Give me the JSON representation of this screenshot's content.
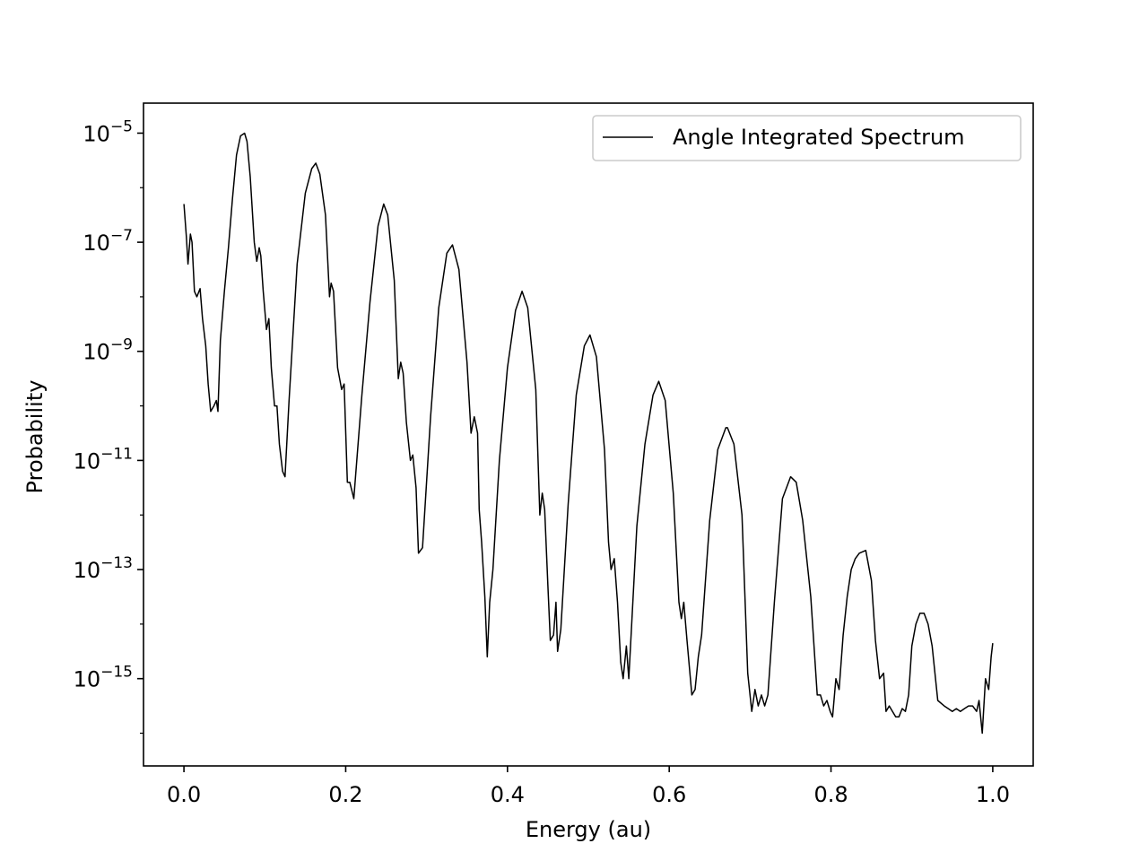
{
  "chart_data": {
    "type": "line",
    "title": "",
    "xlabel": "Energy (au)",
    "ylabel": "Probability",
    "xlim": [
      -0.05,
      1.05
    ],
    "ylim_log10": [
      -16.6,
      -4.45
    ],
    "yscale": "log",
    "grid": false,
    "legend": {
      "placement": "top-right",
      "entries": [
        "Angle Integrated Spectrum"
      ]
    },
    "x_ticks": [
      "0.0",
      "0.2",
      "0.4",
      "0.6",
      "0.8",
      "1.0"
    ],
    "x_tick_values": [
      0.0,
      0.2,
      0.4,
      0.6,
      0.8,
      1.0
    ],
    "y_ticks": [
      {
        "base": "10",
        "exp": "−5",
        "log10": -5
      },
      {
        "base": "10",
        "exp": "−7",
        "log10": -7
      },
      {
        "base": "10",
        "exp": "−9",
        "log10": -9
      },
      {
        "base": "10",
        "exp": "−11",
        "log10": -11
      },
      {
        "base": "10",
        "exp": "−13",
        "log10": -13
      },
      {
        "base": "10",
        "exp": "−15",
        "log10": -15
      }
    ],
    "series": [
      {
        "name": "Angle Integrated Spectrum",
        "color": "#000000",
        "x": [
          0.0,
          0.003,
          0.005,
          0.008,
          0.01,
          0.013,
          0.016,
          0.02,
          0.023,
          0.027,
          0.03,
          0.033,
          0.037,
          0.04,
          0.042,
          0.045,
          0.05,
          0.055,
          0.06,
          0.065,
          0.07,
          0.075,
          0.078,
          0.082,
          0.087,
          0.09,
          0.093,
          0.095,
          0.098,
          0.102,
          0.105,
          0.108,
          0.112,
          0.115,
          0.118,
          0.122,
          0.125,
          0.13,
          0.14,
          0.15,
          0.158,
          0.163,
          0.168,
          0.175,
          0.18,
          0.182,
          0.185,
          0.19,
          0.195,
          0.198,
          0.202,
          0.205,
          0.21,
          0.22,
          0.23,
          0.24,
          0.247,
          0.252,
          0.26,
          0.265,
          0.268,
          0.271,
          0.275,
          0.28,
          0.283,
          0.287,
          0.29,
          0.295,
          0.305,
          0.315,
          0.325,
          0.332,
          0.34,
          0.35,
          0.355,
          0.359,
          0.363,
          0.365,
          0.368,
          0.372,
          0.375,
          0.378,
          0.382,
          0.39,
          0.4,
          0.41,
          0.418,
          0.425,
          0.435,
          0.44,
          0.443,
          0.446,
          0.45,
          0.453,
          0.457,
          0.46,
          0.462,
          0.466,
          0.475,
          0.485,
          0.495,
          0.502,
          0.51,
          0.52,
          0.525,
          0.528,
          0.532,
          0.536,
          0.54,
          0.543,
          0.547,
          0.55,
          0.56,
          0.57,
          0.58,
          0.587,
          0.595,
          0.605,
          0.612,
          0.615,
          0.618,
          0.622,
          0.628,
          0.632,
          0.636,
          0.64,
          0.65,
          0.66,
          0.67,
          0.672,
          0.68,
          0.69,
          0.697,
          0.702,
          0.706,
          0.71,
          0.714,
          0.718,
          0.722,
          0.73,
          0.74,
          0.75,
          0.757,
          0.765,
          0.775,
          0.783,
          0.787,
          0.791,
          0.795,
          0.799,
          0.802,
          0.806,
          0.81,
          0.815,
          0.82,
          0.825,
          0.83,
          0.835,
          0.843,
          0.85,
          0.855,
          0.86,
          0.865,
          0.868,
          0.872,
          0.876,
          0.88,
          0.884,
          0.888,
          0.892,
          0.896,
          0.9,
          0.905,
          0.91,
          0.915,
          0.92,
          0.925,
          0.932,
          0.94,
          0.945,
          0.95,
          0.955,
          0.96,
          0.965,
          0.97,
          0.975,
          0.98,
          0.983,
          0.987,
          0.991,
          0.995,
          0.998,
          1.0
        ],
        "y_log10": [
          -6.3,
          -6.9,
          -7.4,
          -6.85,
          -7.0,
          -7.9,
          -8.0,
          -7.85,
          -8.4,
          -8.9,
          -9.6,
          -10.1,
          -10.0,
          -9.9,
          -10.1,
          -8.8,
          -7.9,
          -7.1,
          -6.2,
          -5.4,
          -5.05,
          -5.0,
          -5.15,
          -5.8,
          -7.0,
          -7.35,
          -7.1,
          -7.25,
          -7.9,
          -8.6,
          -8.4,
          -9.3,
          -10.0,
          -10.0,
          -10.7,
          -11.2,
          -11.3,
          -9.9,
          -7.4,
          -6.1,
          -5.65,
          -5.55,
          -5.75,
          -6.5,
          -8.0,
          -7.75,
          -7.9,
          -9.3,
          -9.7,
          -9.6,
          -11.4,
          -11.4,
          -11.7,
          -9.8,
          -8.1,
          -6.7,
          -6.3,
          -6.5,
          -7.7,
          -9.5,
          -9.2,
          -9.4,
          -10.3,
          -11.0,
          -10.9,
          -11.5,
          -12.7,
          -12.6,
          -10.2,
          -8.2,
          -7.2,
          -7.05,
          -7.5,
          -9.2,
          -10.5,
          -10.2,
          -10.5,
          -11.9,
          -12.5,
          -13.5,
          -14.6,
          -13.6,
          -13.0,
          -11.0,
          -9.3,
          -8.25,
          -7.9,
          -8.2,
          -9.7,
          -12.0,
          -11.6,
          -11.9,
          -13.3,
          -14.3,
          -14.2,
          -13.6,
          -14.5,
          -14.1,
          -11.8,
          -9.8,
          -8.9,
          -8.7,
          -9.1,
          -10.8,
          -12.5,
          -13.0,
          -12.8,
          -13.6,
          -14.7,
          -15.0,
          -14.4,
          -15.0,
          -12.2,
          -10.7,
          -9.8,
          -9.55,
          -9.9,
          -11.6,
          -13.6,
          -13.9,
          -13.6,
          -14.3,
          -15.3,
          -15.2,
          -14.6,
          -14.2,
          -12.1,
          -10.8,
          -10.4,
          -10.4,
          -10.7,
          -12.0,
          -14.9,
          -15.6,
          -15.2,
          -15.5,
          -15.3,
          -15.5,
          -15.3,
          -13.6,
          -11.7,
          -11.3,
          -11.4,
          -12.1,
          -13.5,
          -15.3,
          -15.3,
          -15.5,
          -15.4,
          -15.6,
          -15.7,
          -15.0,
          -15.2,
          -14.2,
          -13.5,
          -13.0,
          -12.8,
          -12.7,
          -12.65,
          -13.2,
          -14.3,
          -15.0,
          -14.9,
          -15.6,
          -15.5,
          -15.6,
          -15.7,
          -15.7,
          -15.55,
          -15.6,
          -15.3,
          -14.4,
          -14.0,
          -13.8,
          -13.8,
          -14.0,
          -14.4,
          -15.4,
          -15.5,
          -15.55,
          -15.6,
          -15.55,
          -15.6,
          -15.55,
          -15.5,
          -15.5,
          -15.6,
          -15.4,
          -16.0,
          -15.0,
          -15.2,
          -14.6,
          -14.35
        ]
      }
    ]
  }
}
